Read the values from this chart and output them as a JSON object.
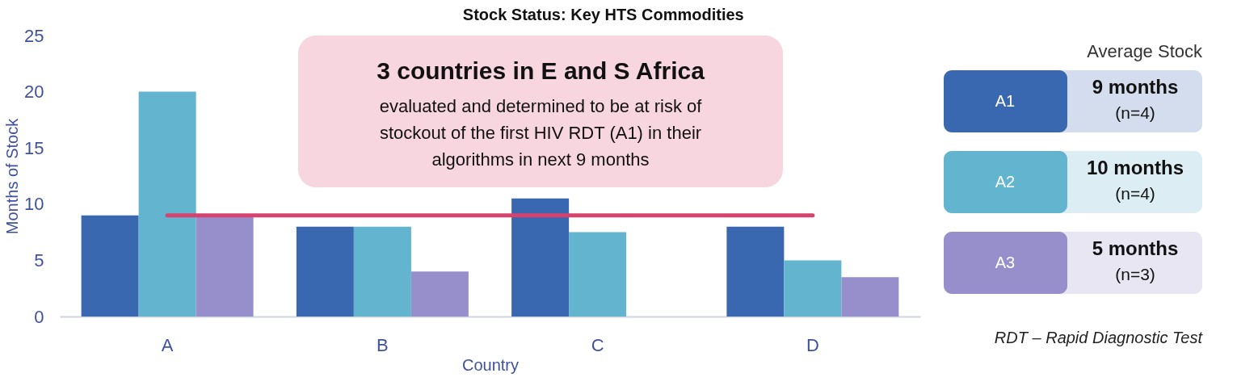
{
  "chart_data": {
    "type": "bar",
    "title": "Stock Status: Key HTS Commodities",
    "xlabel": "Country",
    "ylabel": "Months of Stock",
    "legend_title": "Average Stock",
    "categories": [
      "A",
      "B",
      "C",
      "D"
    ],
    "series": [
      {
        "name": "A1",
        "color": "#3a68b0",
        "values": [
          9,
          8,
          10.5,
          8
        ]
      },
      {
        "name": "A2",
        "color": "#62b4cf",
        "values": [
          20,
          8,
          7.5,
          5
        ]
      },
      {
        "name": "A3",
        "color": "#978fcc",
        "values": [
          9,
          4,
          null,
          3.5
        ]
      }
    ],
    "ylim": [
      0,
      25
    ],
    "yticks": [
      0,
      5,
      10,
      15,
      20,
      25
    ],
    "grid": false,
    "legend": "right",
    "ref_lines": [
      {
        "axis": "y",
        "value": 9,
        "color": "#d6436e"
      }
    ],
    "annotations": [
      "3  countries in E and S Africa",
      "evaluated and determined to be at risk of",
      "stockout of the first HIV RDT (A1) in their",
      "algorithms in next 9 months",
      "9 months",
      "(n=4)",
      "10 months",
      "(n=4)",
      "5 months",
      "(n=3)",
      "RDT – Rapid Diagnostic Test"
    ]
  }
}
